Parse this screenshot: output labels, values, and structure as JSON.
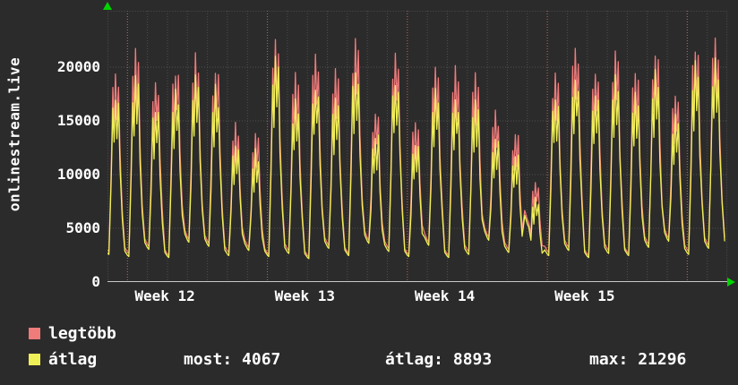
{
  "chart_data": {
    "type": "line",
    "title": "onlinestream.live",
    "days": 31,
    "ylim": [
      0,
      25250
    ],
    "y_ticks": [
      0,
      5000,
      10000,
      15000,
      20000
    ],
    "y_tick_labels": [
      "0",
      "5000",
      "10000",
      "15000",
      "20000"
    ],
    "x_ticks": [
      {
        "day": 1,
        "label": "Week 12"
      },
      {
        "day": 8,
        "label": "Week 13"
      },
      {
        "day": 15,
        "label": "Week 14"
      },
      {
        "day": 22,
        "label": "Week 15"
      }
    ],
    "week_line_days": [
      1,
      8,
      15,
      22,
      29
    ],
    "grid": true,
    "legend_position": "bottom-left",
    "series": [
      {
        "name": "legtöbb",
        "color": "#ef7b7b",
        "peaks": [
          19600,
          21000,
          18600,
          19900,
          20800,
          19900,
          14600,
          13900,
          22300,
          18900,
          20600,
          19400,
          21900,
          15900,
          21200,
          14900,
          20100,
          19500,
          18900,
          15500,
          13900,
          9300,
          19700,
          21500,
          19900,
          21100,
          19800,
          21400,
          18000,
          22200,
          22600
        ],
        "troughs": [
          3000,
          2800,
          3500,
          2600,
          4200,
          3800,
          2900,
          3400,
          2700,
          3100,
          2500,
          3600,
          2800,
          4100,
          3300,
          2700,
          3900,
          2600,
          3000,
          4400,
          3200,
          5800,
          2900,
          3400,
          2600,
          3100,
          2800,
          3700,
          4300,
          3000,
          3600
        ]
      },
      {
        "name": "átlag",
        "color": "#efef58",
        "peaks": [
          17600,
          19000,
          16400,
          17800,
          18900,
          17700,
          12800,
          12100,
          20300,
          16600,
          18400,
          17000,
          19800,
          13900,
          19000,
          13000,
          17900,
          17200,
          16600,
          13400,
          12000,
          7800,
          17400,
          19400,
          17600,
          19000,
          17500,
          19300,
          15700,
          20200,
          20600
        ],
        "troughs": [
          2700,
          2500,
          3200,
          2400,
          3900,
          3500,
          2600,
          3100,
          2500,
          2800,
          2300,
          3300,
          2600,
          3800,
          3000,
          2500,
          3600,
          2400,
          2700,
          4100,
          2900,
          5400,
          2600,
          3100,
          2400,
          2800,
          2600,
          3400,
          4000,
          2700,
          3300
        ]
      }
    ],
    "stats": [
      {
        "label": "most:",
        "value": "4067"
      },
      {
        "label": "átlag:",
        "value": "8893"
      },
      {
        "label": "max:",
        "value": "21296"
      }
    ],
    "colors": {
      "background": "#2b2b2b",
      "grid": "#4f4f4f",
      "week_grid": "#c05e5e",
      "axis": "#c8c8c8",
      "arrow": "#00d400",
      "text": "#ffffff"
    }
  }
}
